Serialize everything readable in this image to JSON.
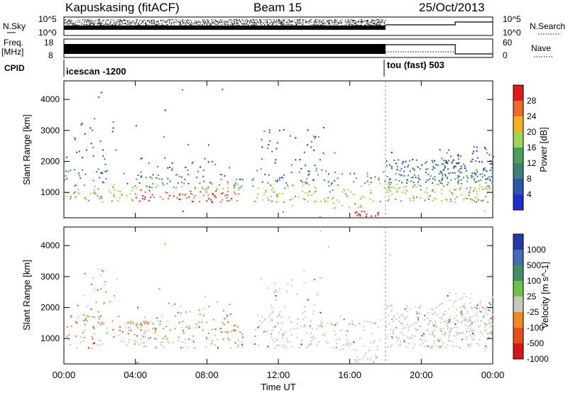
{
  "header": {
    "station": "Kapuskasing (fitACF)",
    "beam": "Beam 15",
    "date": "25/Oct/2013"
  },
  "top_panels": {
    "nsky_label": "N.Sky",
    "nsky_ticks": [
      "10^5",
      "10^0"
    ],
    "nsearch_label": "N.Search",
    "nsearch_ticks": [
      "10^5",
      "10^0"
    ],
    "freq_label_1": "Freq.",
    "freq_label_2": "[MHz]",
    "freq_ticks": [
      "18",
      "8"
    ],
    "nave_label": "Nave",
    "nave_ticks": [
      "60",
      "0"
    ],
    "cpid_label": "CPID",
    "cpid_segments": [
      {
        "label": "icescan -1200",
        "start_hour": 0,
        "end_hour": 18
      },
      {
        "label": "tou (fast) 503",
        "start_hour": 18,
        "end_hour": 24
      }
    ]
  },
  "chart_data": [
    {
      "type": "heatmap",
      "name": "power",
      "ylabel": "Slant Range [km]",
      "ylim": [
        180,
        4600
      ],
      "yticks": [
        1000,
        2000,
        3000,
        4000
      ],
      "xlim_hours": [
        0,
        24
      ],
      "colorbar": {
        "label": "Power [dB]",
        "ticks": [
          "28",
          "24",
          "20",
          "16",
          "12",
          "8",
          "4"
        ],
        "colors": [
          "#e01b1b",
          "#f06a2a",
          "#f5b21f",
          "#9ed653",
          "#4aa05a",
          "#3f7f76",
          "#2a58a6",
          "#1f2cd0"
        ]
      }
    },
    {
      "type": "heatmap",
      "name": "velocity",
      "ylabel": "Slant Range [km]",
      "ylim": [
        180,
        4600
      ],
      "yticks": [
        1000,
        2000,
        3000,
        4000
      ],
      "xlim_hours": [
        0,
        24
      ],
      "xlabel": "Time UT",
      "xticks": [
        "00:00",
        "04:00",
        "08:00",
        "12:00",
        "16:00",
        "20:00",
        "00:00"
      ],
      "colorbar": {
        "label": "Velocity [m s^-1]",
        "ticks": [
          "1000",
          "500",
          "100",
          "25",
          "-25",
          "-100",
          "-500",
          "-1000"
        ],
        "colors": [
          "#2438a8",
          "#3f6fb8",
          "#3e8f6a",
          "#6dc24a",
          "#c8c8c0",
          "#f08a1e",
          "#e84f18",
          "#d6141a"
        ]
      }
    }
  ]
}
